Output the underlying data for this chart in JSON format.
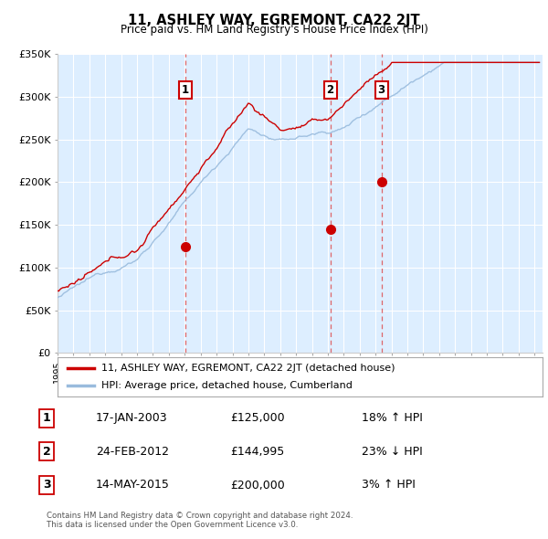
{
  "title": "11, ASHLEY WAY, EGREMONT, CA22 2JT",
  "subtitle": "Price paid vs. HM Land Registry's House Price Index (HPI)",
  "ylabel_ticks": [
    "£0",
    "£50K",
    "£100K",
    "£150K",
    "£200K",
    "£250K",
    "£300K",
    "£350K"
  ],
  "ytick_values": [
    0,
    50000,
    100000,
    150000,
    200000,
    250000,
    300000,
    350000
  ],
  "ylim": [
    0,
    350000
  ],
  "xlim_start": 1995.0,
  "xlim_end": 2025.5,
  "sale_color": "#cc0000",
  "hpi_color": "#99bbdd",
  "sale_marker_dates": [
    2003.05,
    2012.15,
    2015.37
  ],
  "sale_marker_prices": [
    125000,
    144995,
    200000
  ],
  "sale_marker_labels": [
    "1",
    "2",
    "3"
  ],
  "vline_dates": [
    2003.05,
    2012.15,
    2015.37
  ],
  "legend_sale_label": "11, ASHLEY WAY, EGREMONT, CA22 2JT (detached house)",
  "legend_hpi_label": "HPI: Average price, detached house, Cumberland",
  "table_data": [
    [
      "1",
      "17-JAN-2003",
      "£125,000",
      "18% ↑ HPI"
    ],
    [
      "2",
      "24-FEB-2012",
      "£144,995",
      "23% ↓ HPI"
    ],
    [
      "3",
      "14-MAY-2015",
      "£200,000",
      "3% ↑ HPI"
    ]
  ],
  "footer": "Contains HM Land Registry data © Crown copyright and database right 2024.\nThis data is licensed under the Open Government Licence v3.0.",
  "background_color": "#ffffff",
  "plot_bg_color": "#ddeeff"
}
